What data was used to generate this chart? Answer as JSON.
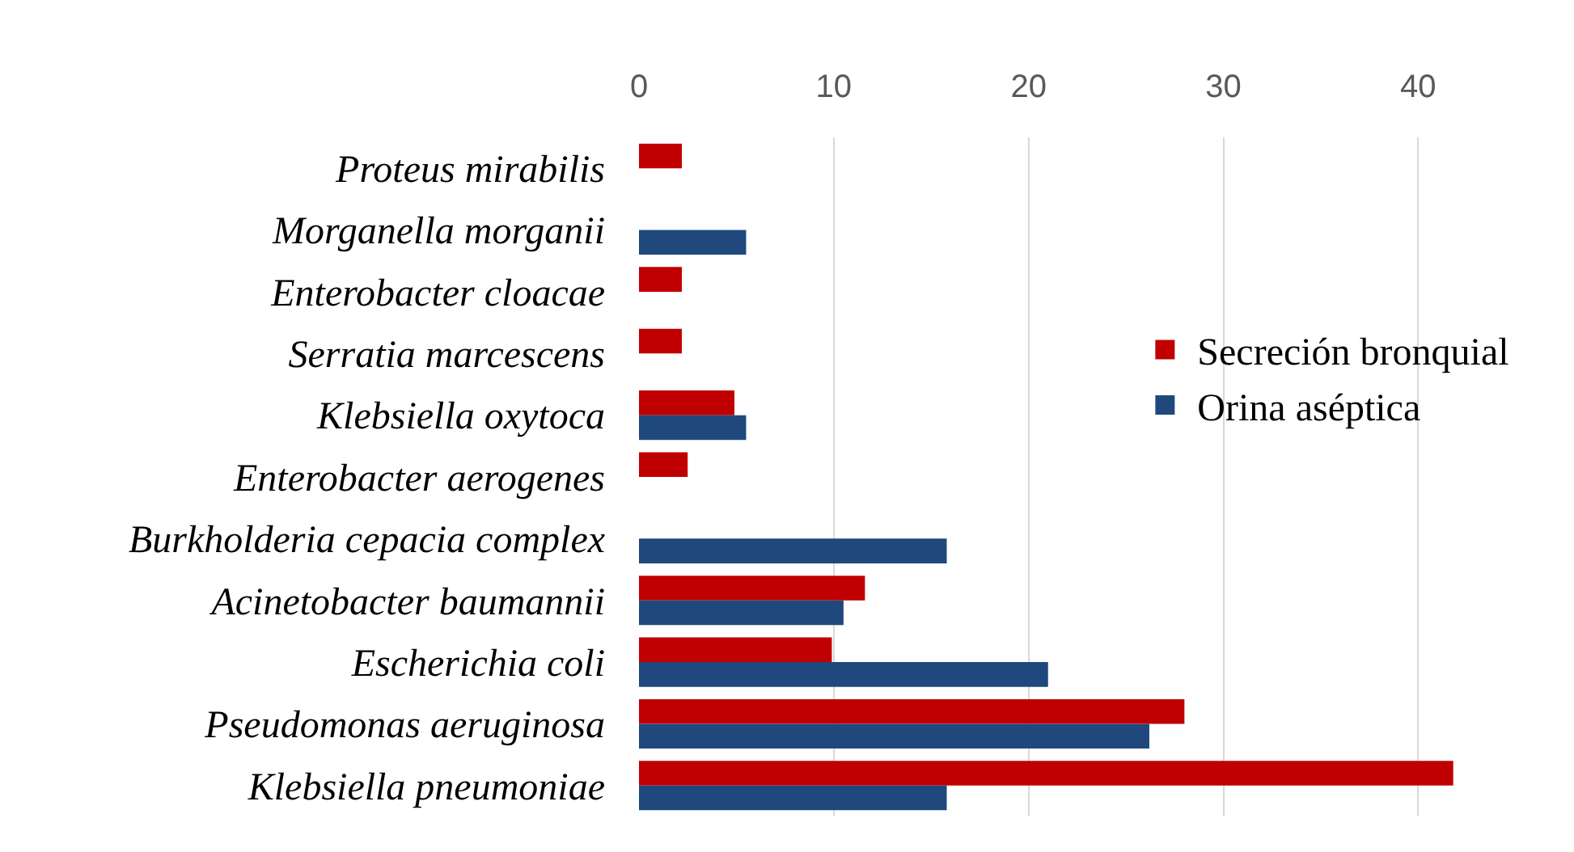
{
  "chart_data": {
    "type": "bar",
    "orientation": "horizontal",
    "categories": [
      "Proteus mirabilis",
      "Morganella morganii",
      "Enterobacter cloacae",
      "Serratia marcescens",
      "Klebsiella oxytoca",
      "Enterobacter aerogenes",
      "Burkholderia cepacia complex",
      "Acinetobacter baumannii",
      "Escherichia coli",
      "Pseudomonas aeruginosa",
      "Klebsiella pneumoniae"
    ],
    "series": [
      {
        "name": "Secreción bronquial",
        "color": "#c00000",
        "values": [
          2.2,
          null,
          2.2,
          2.2,
          4.9,
          2.5,
          null,
          11.6,
          9.9,
          28.0,
          41.8
        ]
      },
      {
        "name": "Orina aséptica",
        "color": "#1f497d",
        "values": [
          null,
          5.5,
          null,
          null,
          5.5,
          null,
          15.8,
          10.5,
          21.0,
          26.2,
          15.8
        ]
      }
    ],
    "xlim": [
      0,
      48
    ],
    "xticks": [
      0,
      10,
      20,
      30,
      40
    ],
    "grid": "x",
    "legend": "right"
  }
}
